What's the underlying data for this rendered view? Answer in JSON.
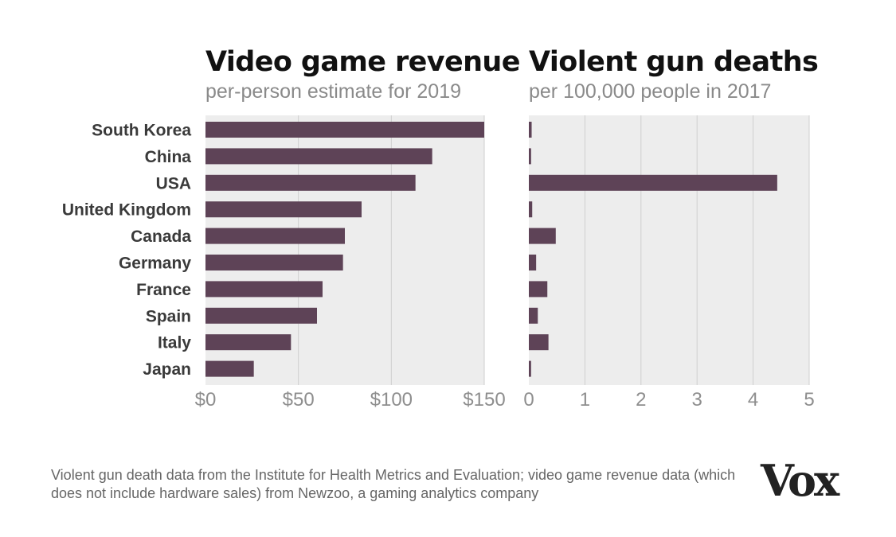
{
  "chart_data": [
    {
      "type": "bar",
      "orientation": "horizontal",
      "title": "Video game revenue",
      "subtitle": "per-person estimate for 2019",
      "categories": [
        "South Korea",
        "China",
        "USA",
        "United Kingdom",
        "Canada",
        "Germany",
        "France",
        "Spain",
        "Italy",
        "Japan"
      ],
      "values": [
        150,
        122,
        113,
        84,
        75,
        74,
        63,
        60,
        46,
        26
      ],
      "xlim": [
        0,
        150
      ],
      "ticks": [
        0,
        50,
        100,
        150
      ],
      "tick_labels": [
        "$0",
        "$50",
        "$100",
        "$150"
      ],
      "grid": true,
      "bar_color": "#5e4357"
    },
    {
      "type": "bar",
      "orientation": "horizontal",
      "title": "Violent gun deaths",
      "subtitle": "per 100,000 people in 2017",
      "categories": [
        "South Korea",
        "China",
        "USA",
        "United Kingdom",
        "Canada",
        "Germany",
        "France",
        "Spain",
        "Italy",
        "Japan"
      ],
      "values": [
        0.05,
        0.04,
        4.43,
        0.06,
        0.48,
        0.13,
        0.33,
        0.16,
        0.35,
        0.04
      ],
      "xlim": [
        0,
        5
      ],
      "ticks": [
        0,
        1,
        2,
        3,
        4,
        5
      ],
      "tick_labels": [
        "0",
        "1",
        "2",
        "3",
        "4",
        "5"
      ],
      "grid": true,
      "bar_color": "#5e4357"
    }
  ],
  "source_note": "Violent gun death data from the Institute for Health Metrics and Evaluation; video game revenue data (which does not include hardware sales) from Newzoo, a gaming analytics company",
  "logo_text": "Vox"
}
